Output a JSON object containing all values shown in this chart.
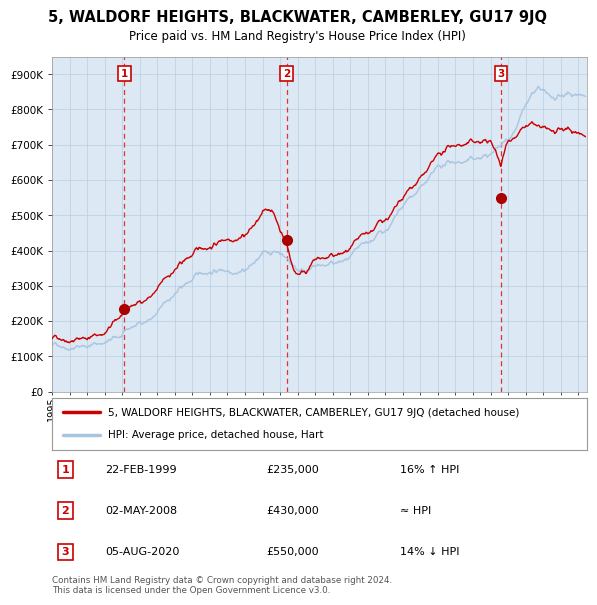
{
  "title": "5, WALDORF HEIGHTS, BLACKWATER, CAMBERLEY, GU17 9JQ",
  "subtitle": "Price paid vs. HM Land Registry's House Price Index (HPI)",
  "legend_line1": "5, WALDORF HEIGHTS, BLACKWATER, CAMBERLEY, GU17 9JQ (detached house)",
  "legend_line2": "HPI: Average price, detached house, Hart",
  "transactions": [
    {
      "num": "1",
      "date": "22-FEB-1999",
      "price": "£235,000",
      "note": "16% ↑ HPI",
      "year": 1999.12,
      "price_val": 235000
    },
    {
      "num": "2",
      "date": "02-MAY-2008",
      "price": "£430,000",
      "note": "≈ HPI",
      "year": 2008.37,
      "price_val": 430000
    },
    {
      "num": "3",
      "date": "05-AUG-2020",
      "price": "£550,000",
      "note": "14% ↓ HPI",
      "year": 2020.59,
      "price_val": 550000
    }
  ],
  "hpi_color": "#a8c4e0",
  "price_color": "#cc0000",
  "dot_color": "#aa0000",
  "vline_color": "#dd3333",
  "bg_color": "#dce9f5",
  "grid_color": "#b8cfe0",
  "ylim": [
    0,
    950000
  ],
  "xlim_start": 1995.0,
  "xlim_end": 2025.5,
  "footer": "Contains HM Land Registry data © Crown copyright and database right 2024.\nThis data is licensed under the Open Government Licence v3.0."
}
